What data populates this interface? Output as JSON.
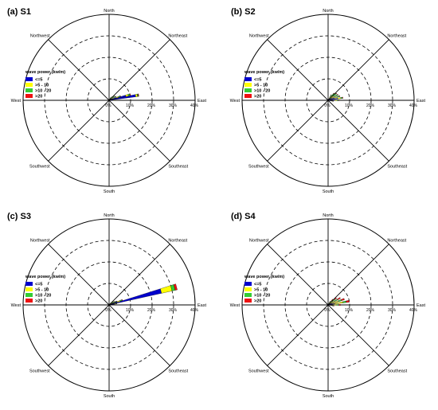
{
  "legend_title": "wave power (kw/m)",
  "bins": [
    {
      "label": "<=5",
      "color": "#0000cc"
    },
    {
      "label": ">5 - 10",
      "color": "#ffff00"
    },
    {
      "label": ">10 - 20",
      "color": "#33cc33"
    },
    {
      "label": ">20",
      "color": "#ee1111"
    }
  ],
  "directions": {
    "north": "North",
    "south": "South",
    "east": "East",
    "west": "West",
    "northeast": "Northeast",
    "northwest": "Northwest",
    "southeast": "Southeast",
    "southwest": "Southwest"
  },
  "chart_data": [
    {
      "type": "wind-rose",
      "title": "(a) S1",
      "rings": [
        "0%",
        "10%",
        "20%",
        "30%",
        "40%"
      ],
      "rlim": [
        0,
        40
      ],
      "legend_title": "wave power (kw/m)",
      "legend_placement": "left",
      "wedges": [
        {
          "direction_deg": 80,
          "values": [
            12.5,
            0.8,
            0.4,
            0.3
          ]
        },
        {
          "direction_deg": 75,
          "values": [
            8.0,
            1.2,
            0.8,
            0.3
          ]
        },
        {
          "direction_deg": 70,
          "values": [
            3.5,
            1.2,
            0.8,
            0.2
          ]
        },
        {
          "direction_deg": 60,
          "values": [
            1.5,
            1.0,
            1.0,
            0.2
          ]
        },
        {
          "direction_deg": 50,
          "values": [
            1.0,
            0.8,
            1.2,
            0.2
          ]
        },
        {
          "direction_deg": 40,
          "values": [
            0.5,
            0.5,
            1.0,
            0.2
          ]
        },
        {
          "direction_deg": 30,
          "values": [
            0.3,
            0.3,
            0.8,
            0.1
          ]
        },
        {
          "direction_deg": 90,
          "values": [
            2.0,
            0.6,
            0.3,
            0.1
          ]
        }
      ]
    },
    {
      "type": "wind-rose",
      "title": "(b) S2",
      "rings": [
        "0%",
        "10%",
        "20%",
        "30%",
        "40%"
      ],
      "rlim": [
        0,
        40
      ],
      "legend_title": "wave power (kw/m)",
      "legend_placement": "left",
      "wedges": [
        {
          "direction_deg": 80,
          "values": [
            4.5,
            1.5,
            0.7,
            0.3
          ]
        },
        {
          "direction_deg": 70,
          "values": [
            3.0,
            1.5,
            1.0,
            0.3
          ]
        },
        {
          "direction_deg": 60,
          "values": [
            2.0,
            1.5,
            1.5,
            0.3
          ]
        },
        {
          "direction_deg": 50,
          "values": [
            1.5,
            1.5,
            1.8,
            0.3
          ]
        },
        {
          "direction_deg": 40,
          "values": [
            1.0,
            1.2,
            1.8,
            0.3
          ]
        },
        {
          "direction_deg": 30,
          "values": [
            0.8,
            0.8,
            1.2,
            0.2
          ]
        },
        {
          "direction_deg": 90,
          "values": [
            3.0,
            1.2,
            0.6,
            0.2
          ]
        },
        {
          "direction_deg": 100,
          "values": [
            1.5,
            0.6,
            0.3,
            0.1
          ]
        }
      ]
    },
    {
      "type": "wind-rose",
      "title": "(c) S3",
      "rings": [
        "0%",
        "10%",
        "20%",
        "30%",
        "40%"
      ],
      "rlim": [
        0,
        40
      ],
      "legend_title": "wave power (kw/m)",
      "legend_placement": "left",
      "wedges": [
        {
          "direction_deg": 75,
          "values": [
            25.0,
            5.0,
            1.5,
            1.0
          ]
        },
        {
          "direction_deg": 70,
          "values": [
            4.0,
            1.5,
            0.8,
            0.3
          ]
        },
        {
          "direction_deg": 65,
          "values": [
            2.0,
            1.0,
            0.8,
            0.2
          ]
        },
        {
          "direction_deg": 60,
          "values": [
            1.0,
            1.0,
            1.0,
            0.2
          ]
        },
        {
          "direction_deg": 50,
          "values": [
            0.6,
            0.8,
            1.0,
            0.2
          ]
        },
        {
          "direction_deg": 40,
          "values": [
            0.3,
            0.4,
            0.6,
            0.1
          ]
        },
        {
          "direction_deg": 80,
          "values": [
            2.5,
            0.8,
            0.3,
            0.1
          ]
        }
      ]
    },
    {
      "type": "wind-rose",
      "title": "(d) S4",
      "rings": [
        "0%",
        "10%",
        "20%",
        "30%",
        "40%"
      ],
      "rlim": [
        0,
        40
      ],
      "legend_title": "wave power (kw/m)",
      "legend_placement": "left",
      "wedges": [
        {
          "direction_deg": 80,
          "values": [
            3.0,
            4.0,
            1.5,
            1.5
          ]
        },
        {
          "direction_deg": 70,
          "values": [
            2.0,
            3.0,
            1.5,
            1.5
          ]
        },
        {
          "direction_deg": 60,
          "values": [
            1.5,
            2.0,
            1.5,
            1.5
          ]
        },
        {
          "direction_deg": 50,
          "values": [
            1.0,
            1.5,
            1.5,
            1.0
          ]
        },
        {
          "direction_deg": 40,
          "values": [
            0.6,
            1.0,
            1.0,
            0.8
          ]
        },
        {
          "direction_deg": 90,
          "values": [
            2.0,
            2.0,
            1.0,
            0.8
          ]
        },
        {
          "direction_deg": 100,
          "values": [
            1.0,
            1.0,
            0.5,
            0.3
          ]
        },
        {
          "direction_deg": 30,
          "values": [
            0.4,
            0.6,
            0.6,
            0.4
          ]
        }
      ]
    }
  ]
}
